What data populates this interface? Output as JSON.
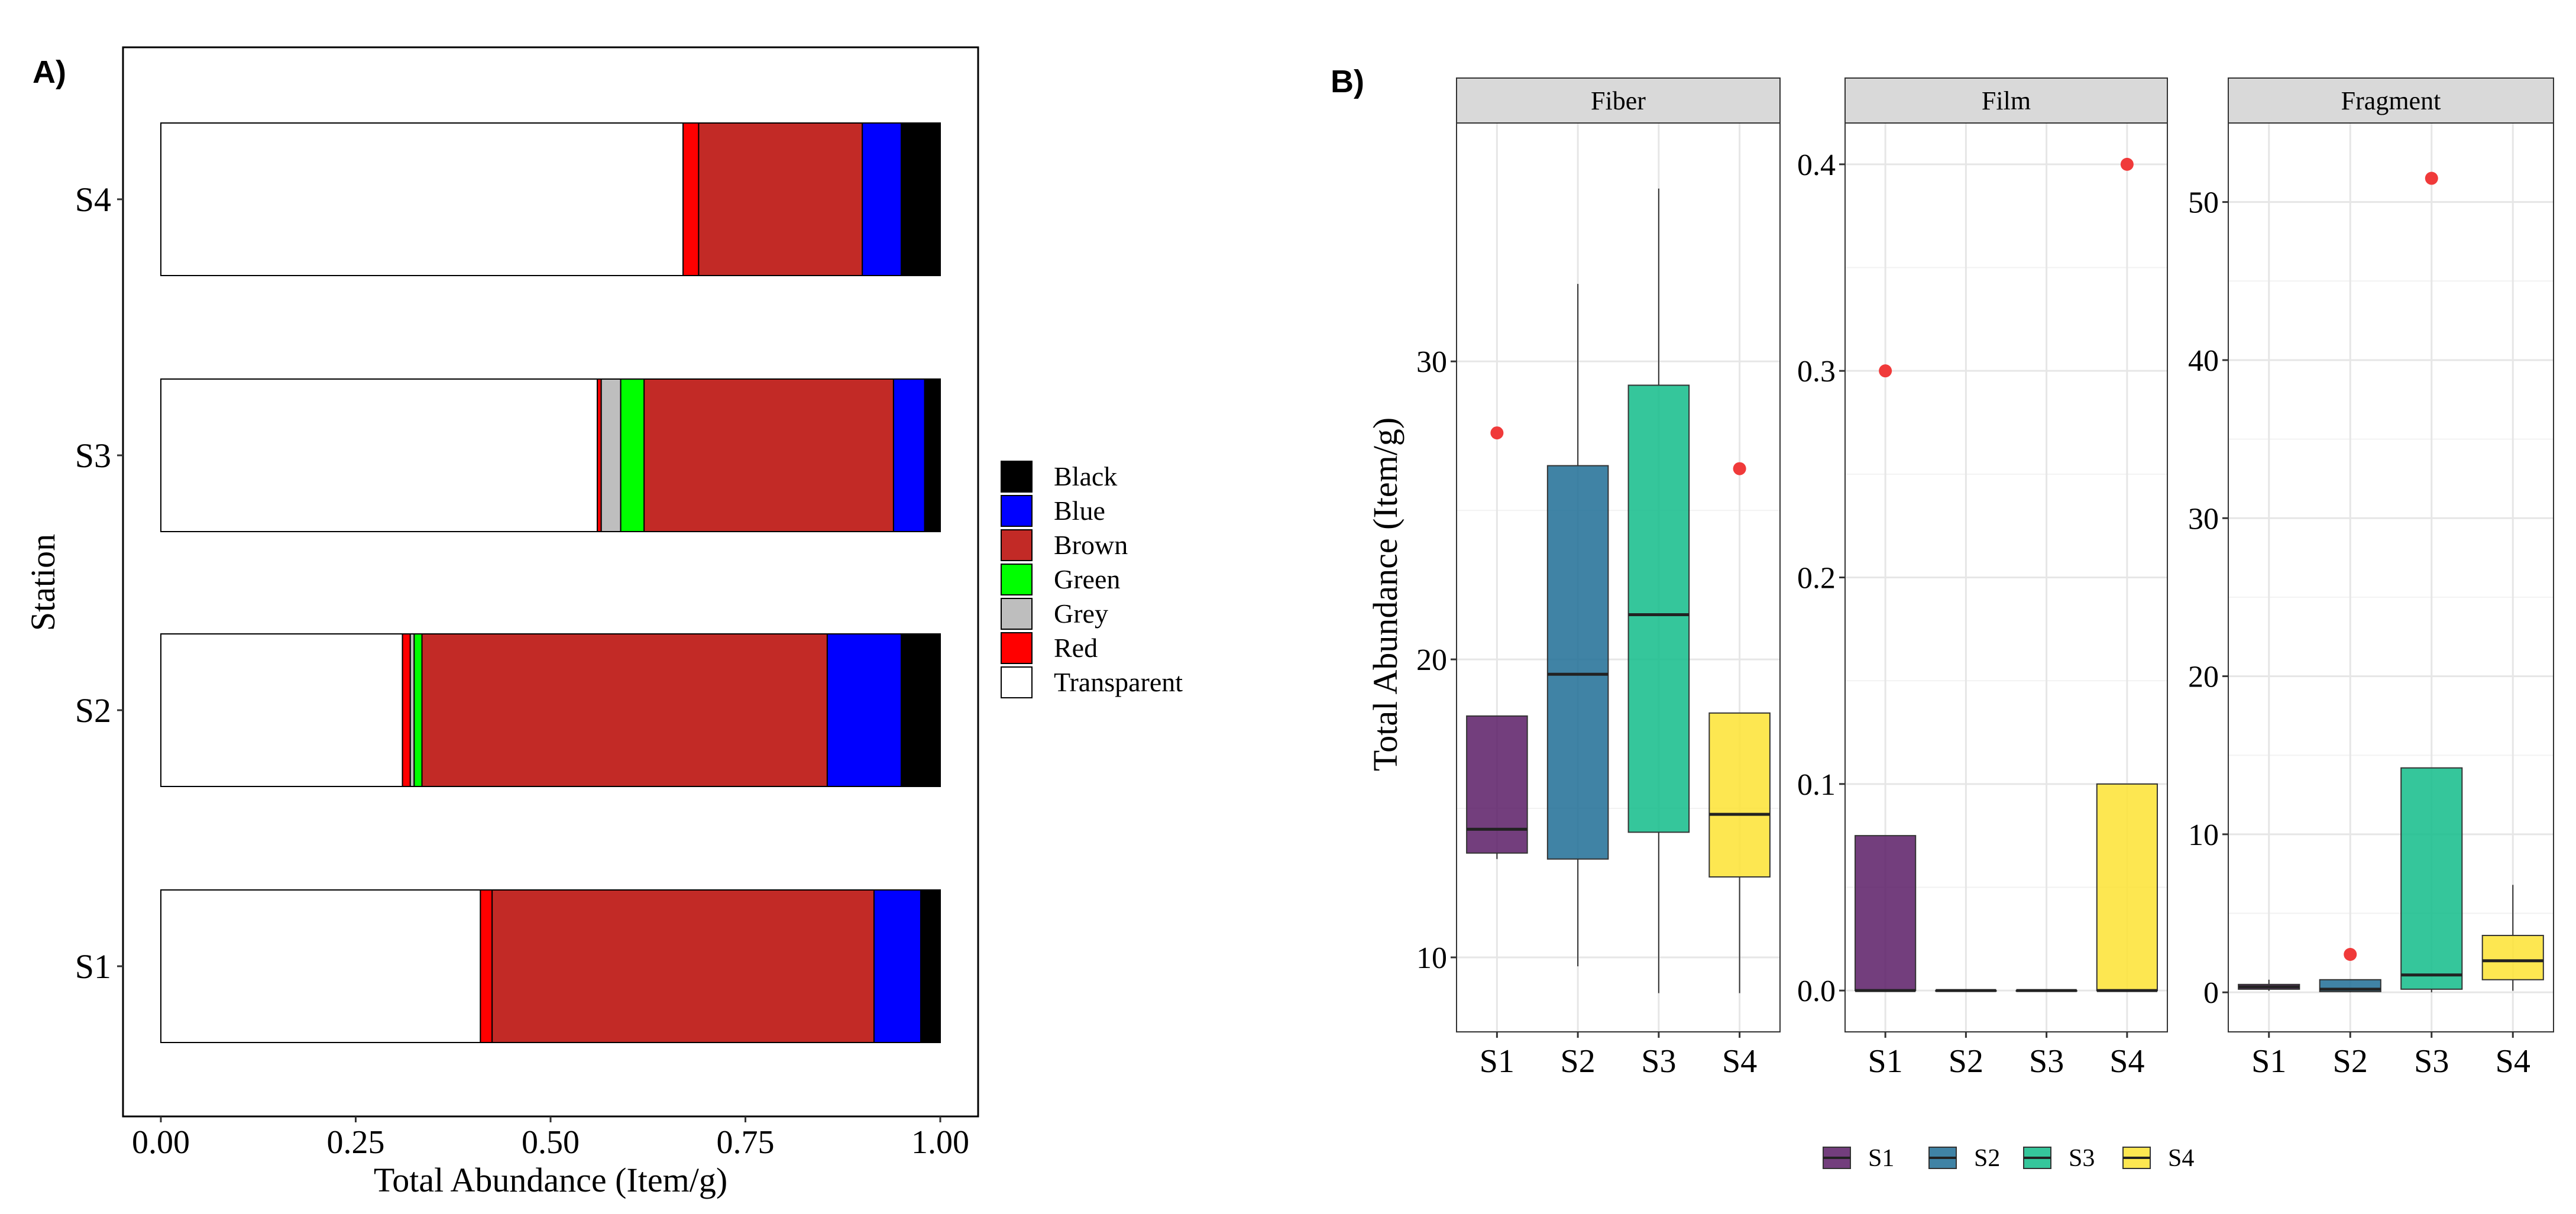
{
  "panel_a": {
    "label": "A)",
    "chart_data": {
      "type": "bar",
      "orientation": "horizontal",
      "stacked": true,
      "normalized": true,
      "title": "",
      "xlabel": "Total Abundance (Item/g)",
      "ylabel": "Station",
      "xlim": [
        0,
        1
      ],
      "xticks": [
        "0.00",
        "0.25",
        "0.50",
        "0.75",
        "1.00"
      ],
      "categories": [
        "S1",
        "S2",
        "S3",
        "S4"
      ],
      "series": [
        {
          "name": "Transparent",
          "color": "#FFFFFF",
          "values": [
            0.41,
            0.31,
            0.56,
            0.67
          ]
        },
        {
          "name": "Red",
          "color": "#FF0000",
          "values": [
            0.015,
            0.01,
            0.005,
            0.02
          ]
        },
        {
          "name": "Grey",
          "color": "#BEBEBE",
          "values": [
            0.0,
            0.005,
            0.025,
            0.0
          ]
        },
        {
          "name": "Green",
          "color": "#00FF00",
          "values": [
            0.0,
            0.01,
            0.03,
            0.0
          ]
        },
        {
          "name": "Brown",
          "color": "#C22A26",
          "values": [
            0.49,
            0.52,
            0.32,
            0.21
          ]
        },
        {
          "name": "Blue",
          "color": "#0000FF",
          "values": [
            0.06,
            0.095,
            0.04,
            0.05
          ]
        },
        {
          "name": "Black",
          "color": "#000000",
          "values": [
            0.025,
            0.05,
            0.02,
            0.05
          ]
        }
      ],
      "legend": {
        "position": "right",
        "items": [
          "Black",
          "Blue",
          "Brown",
          "Green",
          "Grey",
          "Red",
          "Transparent"
        ]
      }
    }
  },
  "panel_b": {
    "label": "B)",
    "chart_data": {
      "type": "boxplot",
      "ylabel": "Total Abundance (Item/g)",
      "categories": [
        "S1",
        "S2",
        "S3",
        "S4"
      ],
      "colors": {
        "S1": "#5B1C66",
        "S2": "#1F6D95",
        "S3": "#12BC89",
        "S4": "#FDE333"
      },
      "outlier_color": "#F03A3A",
      "legend": {
        "position": "bottom",
        "items": [
          "S1",
          "S2",
          "S3",
          "S4"
        ]
      },
      "facets": [
        {
          "name": "Fiber",
          "ylim": [
            7.5,
            38
          ],
          "yticks": [
            10,
            20,
            30
          ],
          "ytick_labels": [
            "10",
            "20",
            "30"
          ],
          "boxes": [
            {
              "group": "S1",
              "q1": 13.5,
              "median": 14.3,
              "q3": 18.1,
              "whisker_low": 13.3,
              "whisker_high": 18.1,
              "outliers": [
                27.6
              ]
            },
            {
              "group": "S2",
              "q1": 13.3,
              "median": 19.5,
              "q3": 26.5,
              "whisker_low": 9.7,
              "whisker_high": 32.6,
              "outliers": []
            },
            {
              "group": "S3",
              "q1": 14.2,
              "median": 21.5,
              "q3": 29.2,
              "whisker_low": 8.8,
              "whisker_high": 35.8,
              "outliers": []
            },
            {
              "group": "S4",
              "q1": 12.7,
              "median": 14.8,
              "q3": 18.2,
              "whisker_low": 8.8,
              "whisker_high": 18.2,
              "outliers": [
                26.4
              ]
            }
          ]
        },
        {
          "name": "Film",
          "ylim": [
            -0.02,
            0.42
          ],
          "yticks": [
            0.0,
            0.1,
            0.2,
            0.3,
            0.4
          ],
          "ytick_labels": [
            "0.0",
            "0.1",
            "0.2",
            "0.3",
            "0.4"
          ],
          "boxes": [
            {
              "group": "S1",
              "q1": 0.0,
              "median": 0.0,
              "q3": 0.075,
              "whisker_low": 0.0,
              "whisker_high": 0.075,
              "outliers": [
                0.3
              ]
            },
            {
              "group": "S2",
              "q1": 0.0,
              "median": 0.0,
              "q3": 0.0,
              "whisker_low": 0.0,
              "whisker_high": 0.0,
              "outliers": []
            },
            {
              "group": "S3",
              "q1": 0.0,
              "median": 0.0,
              "q3": 0.0,
              "whisker_low": 0.0,
              "whisker_high": 0.0,
              "outliers": []
            },
            {
              "group": "S4",
              "q1": 0.0,
              "median": 0.0,
              "q3": 0.1,
              "whisker_low": 0.0,
              "whisker_high": 0.1,
              "outliers": [
                0.4
              ]
            }
          ]
        },
        {
          "name": "Fragment",
          "ylim": [
            -2.5,
            55
          ],
          "yticks": [
            0,
            10,
            20,
            30,
            40,
            50
          ],
          "ytick_labels": [
            "0",
            "10",
            "20",
            "30",
            "40",
            "50"
          ],
          "boxes": [
            {
              "group": "S1",
              "q1": 0.2,
              "median": 0.35,
              "q3": 0.5,
              "whisker_low": 0.1,
              "whisker_high": 0.8,
              "outliers": []
            },
            {
              "group": "S2",
              "q1": 0.05,
              "median": 0.2,
              "q3": 0.8,
              "whisker_low": 0.0,
              "whisker_high": 0.8,
              "outliers": [
                2.4
              ]
            },
            {
              "group": "S3",
              "q1": 0.2,
              "median": 1.1,
              "q3": 14.2,
              "whisker_low": 0.0,
              "whisker_high": 14.2,
              "outliers": [
                51.5
              ]
            },
            {
              "group": "S4",
              "q1": 0.8,
              "median": 2.0,
              "q3": 3.6,
              "whisker_low": 0.1,
              "whisker_high": 6.8,
              "outliers": []
            }
          ]
        }
      ]
    }
  }
}
